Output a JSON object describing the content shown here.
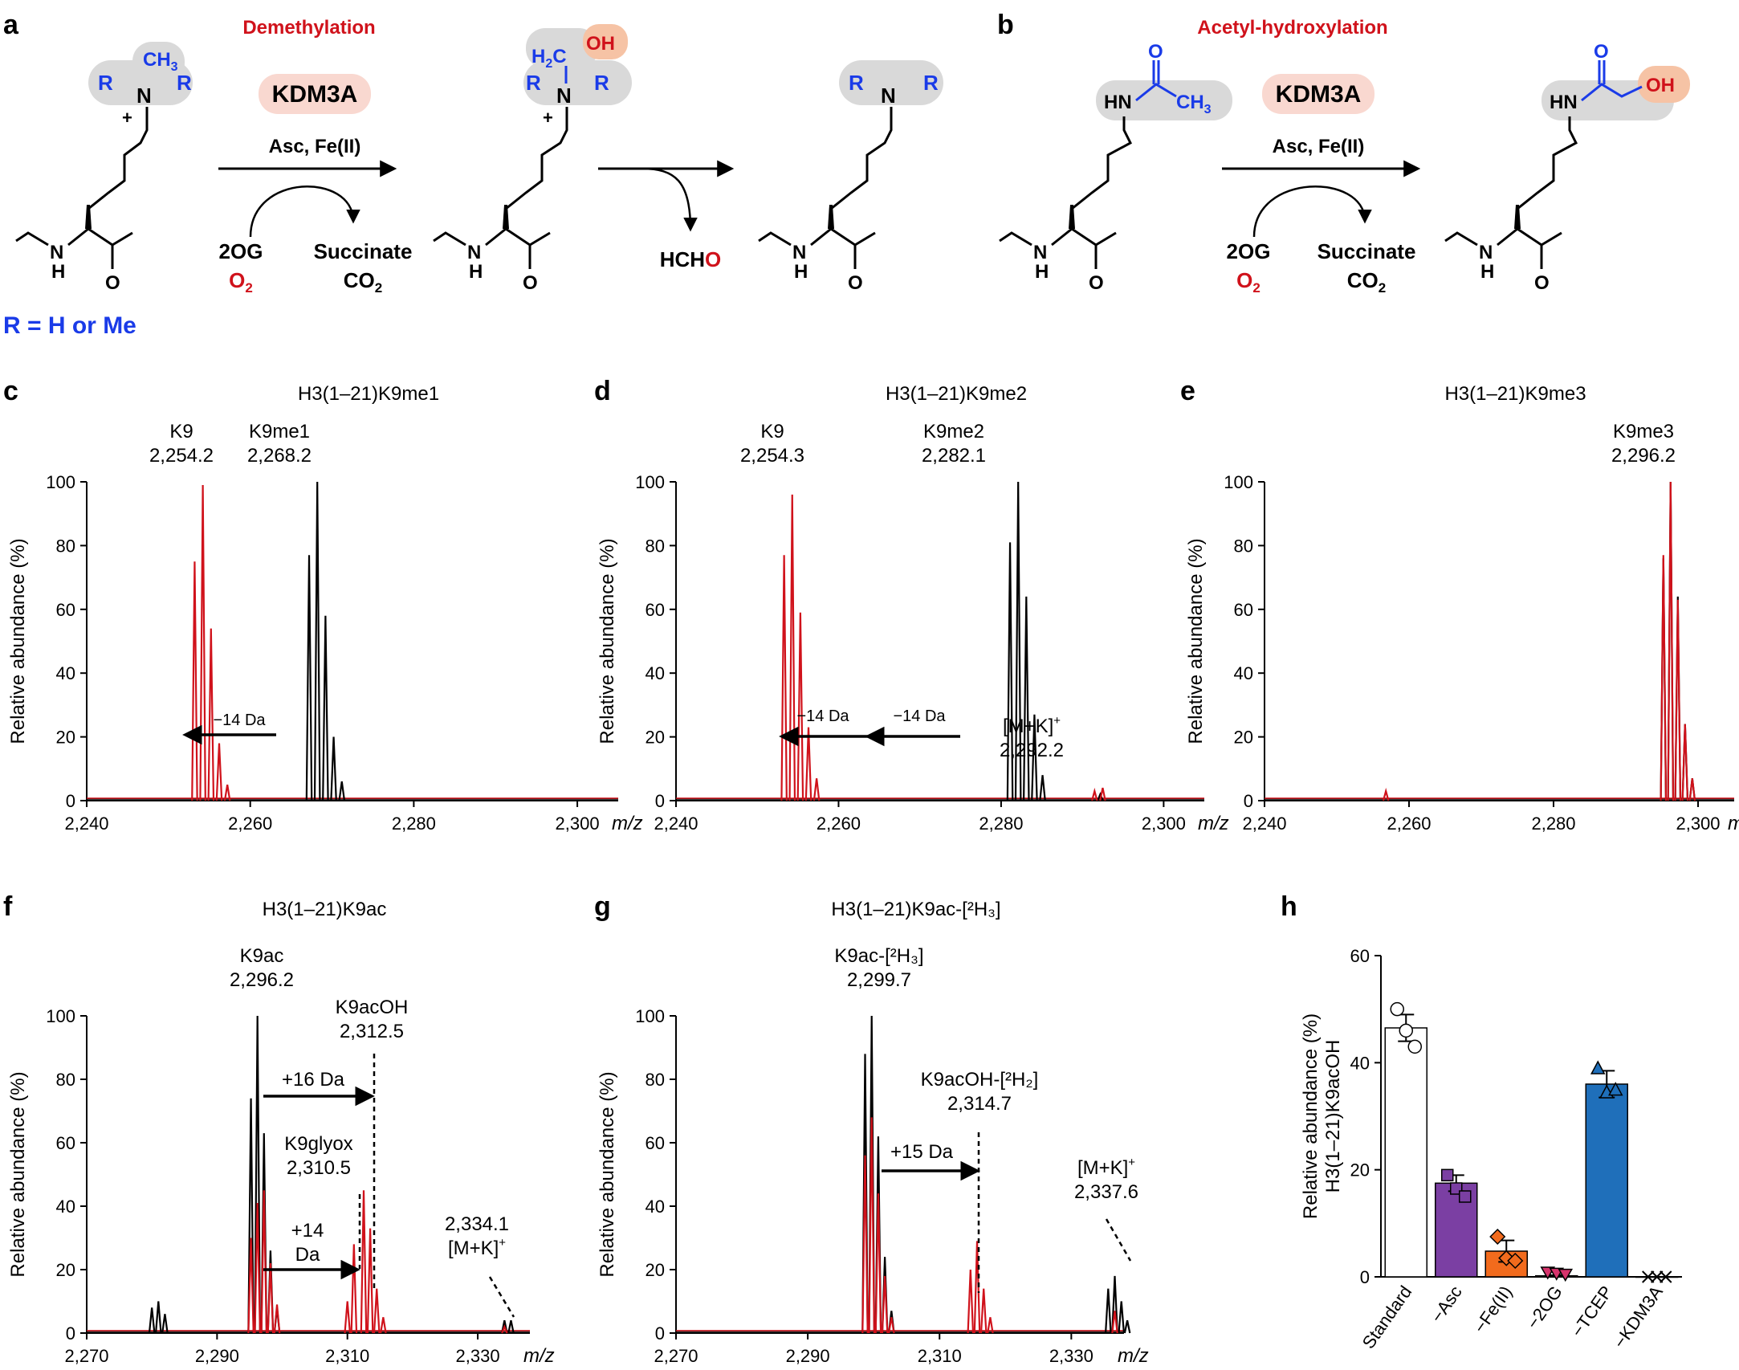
{
  "colors": {
    "red": "#d0121b",
    "black": "#000000",
    "blue": "#1a3be8",
    "highlight_gray": "#d9d9d9",
    "highlight_orange": "#f6c3a5",
    "pill": "#f9d8d0"
  },
  "panel_a": {
    "letter": "a",
    "title": "Demethylation",
    "enzyme": "KDM3A",
    "cofactors": "Asc, Fe(II)",
    "cosub_top": "2OG",
    "cosub_bottom": "O",
    "cosub_bottom_sub": "2",
    "coprod_top": "Succinate",
    "coprod_bottom": "CO",
    "coprod_bottom_sub": "2",
    "byproduct_main": "HCH",
    "byproduct_O": "O",
    "r_note": "R = H or Me",
    "atoms": {
      "R": "R",
      "N": "N",
      "CH3": "CH",
      "CH3_sub": "3",
      "H2C": "H",
      "H2C_sub": "2",
      "C": "C",
      "OH": "OH",
      "plus": "+",
      "NH_N": "N",
      "NH_H": "H",
      "O": "O"
    }
  },
  "panel_b": {
    "letter": "b",
    "title": "Acetyl-hydroxylation",
    "enzyme": "KDM3A",
    "cofactors": "Asc, Fe(II)",
    "cosub_top": "2OG",
    "cosub_bottom": "O",
    "cosub_bottom_sub": "2",
    "coprod_top": "Succinate",
    "coprod_bottom": "CO",
    "coprod_bottom_sub": "2",
    "atoms": {
      "HN": "HN",
      "O": "O",
      "CH3": "CH",
      "CH3_sub": "3",
      "OH": "OH",
      "NH_N": "N",
      "NH_H": "H"
    }
  },
  "chart_data": [
    {
      "panel": "c",
      "type": "line",
      "title": "H3(1–21)K9me1",
      "ylabel": "Relative abundance (%)",
      "xlabel": "m/z",
      "xlim": [
        2240,
        2305
      ],
      "ylim": [
        0,
        100
      ],
      "xticks": [
        "2,240",
        "2,260",
        "2,280",
        "2,300"
      ],
      "yticks": [
        "0",
        "20",
        "40",
        "60",
        "80",
        "100"
      ],
      "series": [
        {
          "color": "#000000",
          "peaks": [
            [
              2267.2,
              77
            ],
            [
              2268.2,
              100
            ],
            [
              2269.2,
              58
            ],
            [
              2270.2,
              20
            ],
            [
              2271.2,
              6
            ]
          ]
        },
        {
          "color": "#d0121b",
          "peaks": [
            [
              2253.2,
              75
            ],
            [
              2254.2,
              99
            ],
            [
              2255.2,
              54
            ],
            [
              2256.2,
              18
            ],
            [
              2257.2,
              5
            ]
          ]
        }
      ],
      "annotations": [
        {
          "line1": "K9",
          "line2": "2,254.2"
        },
        {
          "line1": "K9me1",
          "line2": "2,268.2"
        },
        {
          "text": "−14 Da"
        }
      ]
    },
    {
      "panel": "d",
      "type": "line",
      "title": "H3(1–21)K9me2",
      "ylabel": "Relative abundance (%)",
      "xlabel": "m/z",
      "xlim": [
        2240,
        2305
      ],
      "ylim": [
        0,
        100
      ],
      "xticks": [
        "2,240",
        "2,260",
        "2,280",
        "2,300"
      ],
      "yticks": [
        "0",
        "20",
        "40",
        "60",
        "80",
        "100"
      ],
      "series": [
        {
          "color": "#000000",
          "peaks": [
            [
              2281.1,
              81
            ],
            [
              2282.1,
              100
            ],
            [
              2283.1,
              64
            ],
            [
              2284.1,
              27
            ],
            [
              2285.1,
              8
            ],
            [
              2292.2,
              2
            ]
          ]
        },
        {
          "color": "#d0121b",
          "peaks": [
            [
              2253.3,
              77
            ],
            [
              2254.3,
              96
            ],
            [
              2255.3,
              59
            ],
            [
              2256.3,
              23
            ],
            [
              2257.3,
              7
            ],
            [
              2291.5,
              3
            ],
            [
              2292.5,
              4
            ]
          ]
        }
      ],
      "annotations": [
        {
          "line1": "K9",
          "line2": "2,254.3"
        },
        {
          "line1": "K9me2",
          "line2": "2,282.1"
        },
        {
          "text": "−14 Da"
        },
        {
          "text": "−14 Da"
        },
        {
          "line1": "[M+K]",
          "sup": "+",
          "line2": "2,292.2"
        }
      ]
    },
    {
      "panel": "e",
      "type": "line",
      "title": "H3(1–21)K9me3",
      "ylabel": "Relative abundance (%)",
      "xlabel": "m/z",
      "xlim": [
        2240,
        2305
      ],
      "ylim": [
        0,
        100
      ],
      "xticks": [
        "2,240",
        "2,260",
        "2,280",
        "2,300"
      ],
      "yticks": [
        "0",
        "20",
        "40",
        "60",
        "80",
        "100"
      ],
      "series": [
        {
          "color": "#000000",
          "peaks": [
            [
              2295.2,
              76
            ],
            [
              2296.2,
              100
            ],
            [
              2297.2,
              64
            ],
            [
              2298.2,
              24
            ],
            [
              2299.2,
              7
            ]
          ]
        },
        {
          "color": "#d0121b",
          "peaks": [
            [
              2295.2,
              77
            ],
            [
              2296.2,
              100
            ],
            [
              2297.2,
              63
            ],
            [
              2298.2,
              24
            ],
            [
              2299.2,
              7
            ],
            [
              2256.8,
              3
            ]
          ]
        }
      ],
      "annotations": [
        {
          "line1": "K9me3",
          "line2": "2,296.2"
        }
      ]
    },
    {
      "panel": "f",
      "type": "line",
      "title": "H3(1–21)K9ac",
      "ylabel": "Relative abundance (%)",
      "xlabel": "m/z",
      "xlim": [
        2270,
        2338
      ],
      "ylim": [
        0,
        100
      ],
      "xticks": [
        "2,270",
        "2,290",
        "2,310",
        "2,330"
      ],
      "yticks": [
        "0",
        "20",
        "40",
        "60",
        "80",
        "100"
      ],
      "series": [
        {
          "color": "#000000",
          "peaks": [
            [
              2280,
              8
            ],
            [
              2281,
              10
            ],
            [
              2282,
              6
            ],
            [
              2295.2,
              74
            ],
            [
              2296.2,
              100
            ],
            [
              2297.2,
              63
            ],
            [
              2298.2,
              26
            ],
            [
              2299.2,
              8
            ],
            [
              2334.1,
              4
            ],
            [
              2335.1,
              4
            ]
          ]
        },
        {
          "color": "#d0121b",
          "peaks": [
            [
              2295.2,
              30
            ],
            [
              2296.2,
              41
            ],
            [
              2297.2,
              45
            ],
            [
              2298.2,
              22
            ],
            [
              2299.2,
              9
            ],
            [
              2310,
              10
            ],
            [
              2311,
              28
            ],
            [
              2312.5,
              45
            ],
            [
              2313.5,
              33
            ],
            [
              2314.5,
              14
            ],
            [
              2315.5,
              5
            ],
            [
              2334.1,
              2
            ]
          ]
        }
      ],
      "annotations": [
        {
          "line1": "K9ac",
          "line2": "2,296.2"
        },
        {
          "line1": "K9acOH",
          "line2": "2,312.5"
        },
        {
          "text": "+16 Da"
        },
        {
          "line1": "K9glyox",
          "line2": "2,310.5"
        },
        {
          "line1": "+14",
          "line2": "Da"
        },
        {
          "line1": "2,334.1",
          "line2": "[M+K]",
          "sup": "+"
        }
      ]
    },
    {
      "panel": "g",
      "type": "line",
      "title": "H3(1–21)K9ac-[²H₃]",
      "ylabel": "Relative abundance (%)",
      "xlabel": "m/z",
      "xlim": [
        2270,
        2338
      ],
      "ylim": [
        0,
        100
      ],
      "xticks": [
        "2,270",
        "2,290",
        "2,310",
        "2,330"
      ],
      "yticks": [
        "0",
        "20",
        "40",
        "60",
        "80",
        "100"
      ],
      "series": [
        {
          "color": "#000000",
          "peaks": [
            [
              2298.7,
              88
            ],
            [
              2299.7,
              100
            ],
            [
              2300.7,
              62
            ],
            [
              2301.7,
              24
            ],
            [
              2302.7,
              7
            ],
            [
              2335.6,
              14
            ],
            [
              2336.6,
              18
            ],
            [
              2337.6,
              10
            ],
            [
              2338.5,
              4
            ]
          ]
        },
        {
          "color": "#d0121b",
          "peaks": [
            [
              2298.7,
              56
            ],
            [
              2299.7,
              68
            ],
            [
              2300.7,
              44
            ],
            [
              2301.7,
              18
            ],
            [
              2302.7,
              5
            ],
            [
              2314.7,
              20
            ],
            [
              2315.7,
              29
            ],
            [
              2316.7,
              14
            ],
            [
              2317.7,
              5
            ],
            [
              2336.6,
              7
            ]
          ]
        }
      ],
      "annotations": [
        {
          "line1": "K9ac-[²H₃]",
          "line2": "2,299.7"
        },
        {
          "line1": "K9acOH-[²H₂]",
          "line2": "2,314.7"
        },
        {
          "text": "+15 Da"
        },
        {
          "line1": "[M+K]",
          "sup": "+",
          "line2": "2,337.6"
        }
      ]
    },
    {
      "panel": "h",
      "type": "bar",
      "ylabel": "Relative abundance (%)",
      "ylabel2": "H3(1–21)K9acOH",
      "ylim": [
        0,
        60
      ],
      "yticks": [
        "0",
        "20",
        "40",
        "60"
      ],
      "categories": [
        "Standard",
        "−Asc",
        "−Fe(II)",
        "−2OG",
        "−TCEP",
        "−KDM3A"
      ],
      "values": [
        46.5,
        17.5,
        4.8,
        0.2,
        36.0,
        0.0
      ],
      "errors": [
        2.5,
        1.5,
        2.0,
        0.1,
        2.5,
        0
      ],
      "colors": [
        "#ffffff",
        "#7b3fa3",
        "#f26b1d",
        "#d6336c",
        "#1f6fba",
        "#ffffff"
      ],
      "points": [
        [
          50,
          46,
          43
        ],
        [
          19,
          16.5,
          15
        ],
        [
          7.5,
          3.5,
          3
        ],
        [
          0.6,
          0.4,
          0.2
        ],
        [
          39,
          34.5,
          35
        ],
        [
          0,
          0,
          0
        ]
      ],
      "markers": [
        "circle",
        "square",
        "diamond",
        "triangle-down",
        "triangle-up",
        "x"
      ]
    }
  ]
}
